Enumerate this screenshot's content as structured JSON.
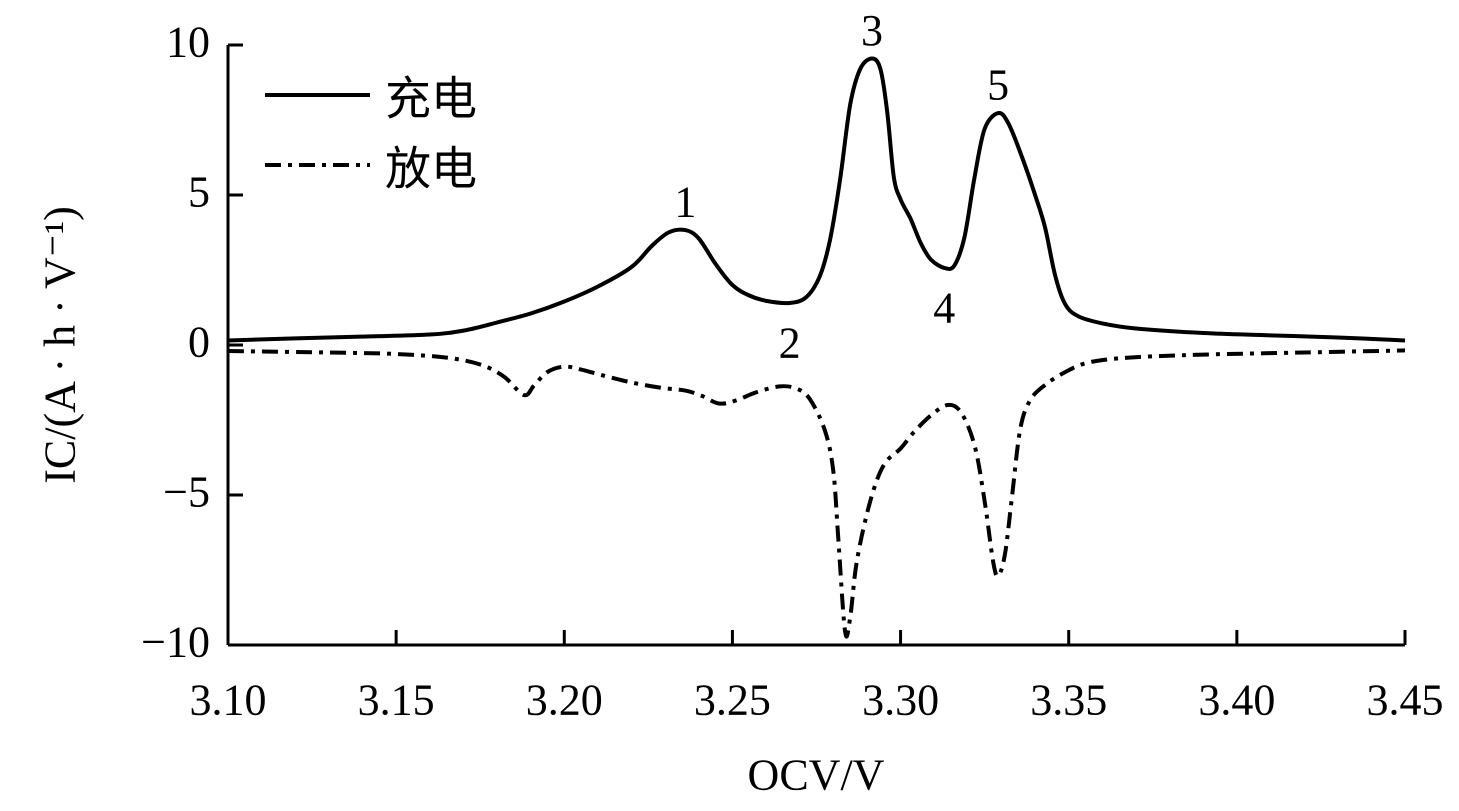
{
  "chart_data": {
    "type": "line",
    "xlabel": "OCV/V",
    "ylabel": "IC/(A · h · V⁻¹)",
    "xlim": [
      3.1,
      3.45
    ],
    "ylim": [
      -10,
      10
    ],
    "xtick_values": [
      3.1,
      3.15,
      3.2,
      3.25,
      3.3,
      3.35,
      3.4,
      3.45
    ],
    "xtick_labels": [
      "3.10",
      "3.15",
      "3.20",
      "3.25",
      "3.30",
      "3.35",
      "3.40",
      "3.45"
    ],
    "ytick_values": [
      10,
      5,
      0,
      -5,
      -10
    ],
    "ytick_labels": [
      "10",
      "5",
      "0",
      "−5",
      "−10"
    ],
    "grid": false,
    "legend": "top-left",
    "series": [
      {
        "name": "充电",
        "line_style": "solid",
        "color": "#000000",
        "x": [
          3.1,
          3.12,
          3.14,
          3.16,
          3.17,
          3.18,
          3.19,
          3.2,
          3.21,
          3.22,
          3.226,
          3.231,
          3.236,
          3.24,
          3.245,
          3.25,
          3.255,
          3.26,
          3.267,
          3.272,
          3.276,
          3.279,
          3.282,
          3.285,
          3.288,
          3.2915,
          3.294,
          3.296,
          3.298,
          3.3,
          3.303,
          3.306,
          3.309,
          3.313,
          3.316,
          3.319,
          3.322,
          3.325,
          3.329,
          3.332,
          3.336,
          3.34,
          3.343,
          3.346,
          3.349,
          3.353,
          3.36,
          3.37,
          3.39,
          3.41,
          3.43,
          3.45
        ],
        "y": [
          0.15,
          0.22,
          0.28,
          0.35,
          0.48,
          0.75,
          1.05,
          1.45,
          1.95,
          2.6,
          3.3,
          3.75,
          3.83,
          3.55,
          2.7,
          2.0,
          1.65,
          1.47,
          1.4,
          1.6,
          2.3,
          3.5,
          5.5,
          8.0,
          9.2,
          9.55,
          9.2,
          7.8,
          5.6,
          4.85,
          4.2,
          3.4,
          2.85,
          2.57,
          2.65,
          3.6,
          5.6,
          7.2,
          7.73,
          7.4,
          6.3,
          5.0,
          3.9,
          2.3,
          1.35,
          0.95,
          0.72,
          0.55,
          0.4,
          0.32,
          0.25,
          0.15
        ]
      },
      {
        "name": "放电",
        "line_style": "dash-dot",
        "color": "#000000",
        "x": [
          3.1,
          3.13,
          3.15,
          3.165,
          3.175,
          3.182,
          3.188,
          3.191,
          3.195,
          3.2,
          3.205,
          3.211,
          3.22,
          3.229,
          3.236,
          3.241,
          3.246,
          3.251,
          3.257,
          3.264,
          3.269,
          3.273,
          3.2775,
          3.28,
          3.2815,
          3.2835,
          3.285,
          3.287,
          3.291,
          3.295,
          3.3,
          3.304,
          3.309,
          3.314,
          3.318,
          3.322,
          3.325,
          3.3275,
          3.329,
          3.331,
          3.333,
          3.3355,
          3.3385,
          3.343,
          3.349,
          3.356,
          3.368,
          3.39,
          3.42,
          3.45
        ],
        "y": [
          -0.2,
          -0.25,
          -0.3,
          -0.42,
          -0.65,
          -1.05,
          -1.67,
          -1.35,
          -0.9,
          -0.72,
          -0.82,
          -1.0,
          -1.25,
          -1.43,
          -1.52,
          -1.7,
          -1.95,
          -1.85,
          -1.58,
          -1.38,
          -1.45,
          -1.8,
          -2.85,
          -4.2,
          -6.5,
          -9.55,
          -9.1,
          -7.2,
          -5.2,
          -4.0,
          -3.45,
          -2.9,
          -2.35,
          -2.0,
          -2.25,
          -3.35,
          -5.2,
          -7.2,
          -7.7,
          -7.0,
          -5.2,
          -2.85,
          -1.85,
          -1.33,
          -0.9,
          -0.58,
          -0.42,
          -0.32,
          -0.25,
          -0.18
        ]
      }
    ],
    "annotations": [
      {
        "text": "1",
        "x": 3.236,
        "y": 3.83,
        "position": "above"
      },
      {
        "text": "2",
        "x": 3.267,
        "y": 1.4,
        "position": "below"
      },
      {
        "text": "3",
        "x": 3.2915,
        "y": 9.55,
        "position": "above"
      },
      {
        "text": "4",
        "x": 3.313,
        "y": 2.57,
        "position": "below"
      },
      {
        "text": "5",
        "x": 3.329,
        "y": 7.73,
        "position": "above"
      }
    ]
  }
}
